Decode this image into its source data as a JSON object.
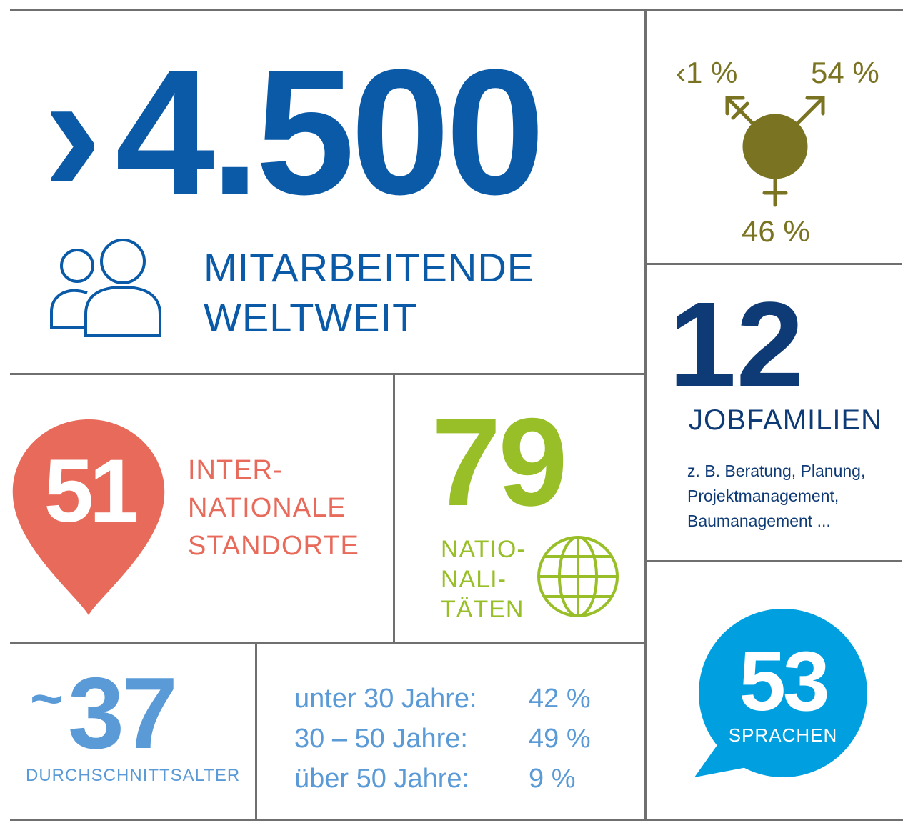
{
  "colors": {
    "employees": "#0a5aa8",
    "gender": "#7a7322",
    "job_families": "#0e3a75",
    "locations": "#e86a5a",
    "nationalities": "#98bf28",
    "age": "#5a9ad6",
    "languages": "#00a0e0"
  },
  "employees": {
    "prefix": "›",
    "count": "4.500",
    "label_line1": "MITARBEITENDE",
    "label_line2": "WELTWEIT",
    "icon": "people-icon"
  },
  "gender": {
    "diverse": "‹1 %",
    "male": "54 %",
    "female": "46 %",
    "icon": "gender-symbol-icon"
  },
  "job_families": {
    "count": "12",
    "label": "JOBFAMILIEN",
    "description": "z. B. Beratung, Planung, Projektmanagement, Baumanagement ..."
  },
  "locations": {
    "count": "51",
    "label_line1": "INTER-",
    "label_line2": "NATIONALE",
    "label_line3": "STANDORTE",
    "icon": "map-pin-icon"
  },
  "nationalities": {
    "count": "79",
    "label_line1": "NATIO-",
    "label_line2": "NALI-",
    "label_line3": "TÄTEN",
    "icon": "globe-icon"
  },
  "average_age": {
    "prefix": "~",
    "value": "37",
    "label": "DURCHSCHNITTSALTER"
  },
  "age_distribution": [
    {
      "label": "unter 30 Jahre:",
      "value": "42 %"
    },
    {
      "label": "30 – 50 Jahre:",
      "value": "49 %"
    },
    {
      "label": "über 50 Jahre:",
      "value": "9 %"
    }
  ],
  "languages": {
    "count": "53",
    "label": "SPRACHEN",
    "icon": "speech-bubble-icon"
  }
}
